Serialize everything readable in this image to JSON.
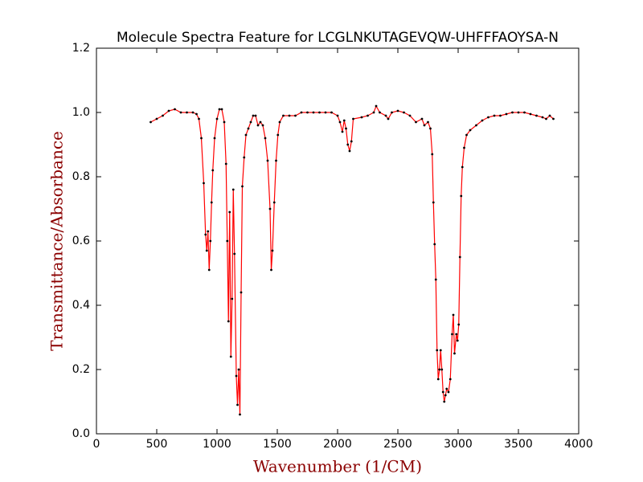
{
  "chart_data": {
    "type": "line",
    "title": "Molecule Spectra Feature for LCGLNKUTAGEVQW-UHFFFAOYSA-N",
    "x_label": "Wavenumber (1/CM)",
    "y_label": "Transmittance/Absorbance",
    "x": [
      450,
      500,
      550,
      600,
      650,
      700,
      750,
      800,
      830,
      850,
      870,
      890,
      905,
      915,
      925,
      935,
      945,
      955,
      965,
      980,
      1000,
      1020,
      1040,
      1060,
      1075,
      1085,
      1095,
      1105,
      1115,
      1125,
      1135,
      1145,
      1160,
      1170,
      1180,
      1190,
      1200,
      1210,
      1225,
      1240,
      1260,
      1280,
      1300,
      1320,
      1340,
      1360,
      1380,
      1400,
      1420,
      1440,
      1450,
      1460,
      1475,
      1490,
      1505,
      1520,
      1550,
      1600,
      1650,
      1700,
      1750,
      1800,
      1850,
      1900,
      1950,
      2000,
      2020,
      2040,
      2055,
      2070,
      2085,
      2100,
      2115,
      2130,
      2200,
      2250,
      2300,
      2320,
      2350,
      2400,
      2420,
      2450,
      2500,
      2550,
      2600,
      2650,
      2700,
      2720,
      2750,
      2770,
      2785,
      2795,
      2805,
      2815,
      2825,
      2835,
      2845,
      2855,
      2865,
      2875,
      2885,
      2895,
      2905,
      2920,
      2935,
      2950,
      2960,
      2970,
      2985,
      2995,
      3005,
      3015,
      3025,
      3035,
      3050,
      3070,
      3100,
      3150,
      3200,
      3250,
      3300,
      3350,
      3400,
      3450,
      3500,
      3550,
      3600,
      3650,
      3700,
      3730,
      3760,
      3790
    ],
    "values": [
      0.97,
      0.98,
      0.99,
      1.005,
      1.01,
      1.0,
      1.0,
      1.0,
      0.995,
      0.98,
      0.92,
      0.78,
      0.62,
      0.57,
      0.63,
      0.51,
      0.6,
      0.72,
      0.82,
      0.92,
      0.98,
      1.01,
      1.01,
      0.97,
      0.84,
      0.6,
      0.35,
      0.69,
      0.24,
      0.42,
      0.76,
      0.56,
      0.18,
      0.09,
      0.2,
      0.06,
      0.44,
      0.77,
      0.86,
      0.93,
      0.95,
      0.97,
      0.99,
      0.99,
      0.96,
      0.97,
      0.96,
      0.92,
      0.85,
      0.7,
      0.51,
      0.57,
      0.72,
      0.85,
      0.93,
      0.97,
      0.99,
      0.99,
      0.99,
      1.0,
      1.0,
      1.0,
      1.0,
      1.0,
      1.0,
      0.99,
      0.97,
      0.94,
      0.975,
      0.95,
      0.9,
      0.88,
      0.91,
      0.98,
      0.985,
      0.99,
      1.0,
      1.02,
      1.0,
      0.99,
      0.98,
      1.0,
      1.005,
      1.0,
      0.99,
      0.97,
      0.98,
      0.96,
      0.97,
      0.95,
      0.87,
      0.72,
      0.59,
      0.48,
      0.26,
      0.17,
      0.2,
      0.26,
      0.2,
      0.13,
      0.1,
      0.12,
      0.14,
      0.13,
      0.17,
      0.31,
      0.37,
      0.25,
      0.31,
      0.29,
      0.34,
      0.55,
      0.74,
      0.83,
      0.89,
      0.93,
      0.945,
      0.96,
      0.975,
      0.985,
      0.99,
      0.99,
      0.995,
      1.0,
      1.0,
      1.0,
      0.995,
      0.99,
      0.985,
      0.98,
      0.99,
      0.98
    ],
    "color": "#ff0000",
    "marker_color": "#000000",
    "xlim": [
      0,
      4000
    ],
    "xticks": [
      0,
      500,
      1000,
      1500,
      2000,
      2500,
      3000,
      3500,
      4000
    ],
    "ylim": [
      0,
      1.2
    ],
    "yticks": [
      {
        "value": 0,
        "label": "0.0"
      },
      0.2,
      0.4,
      0.6,
      0.8,
      {
        "value": 1,
        "label": "1.0"
      },
      1.2
    ],
    "grid": false
  }
}
